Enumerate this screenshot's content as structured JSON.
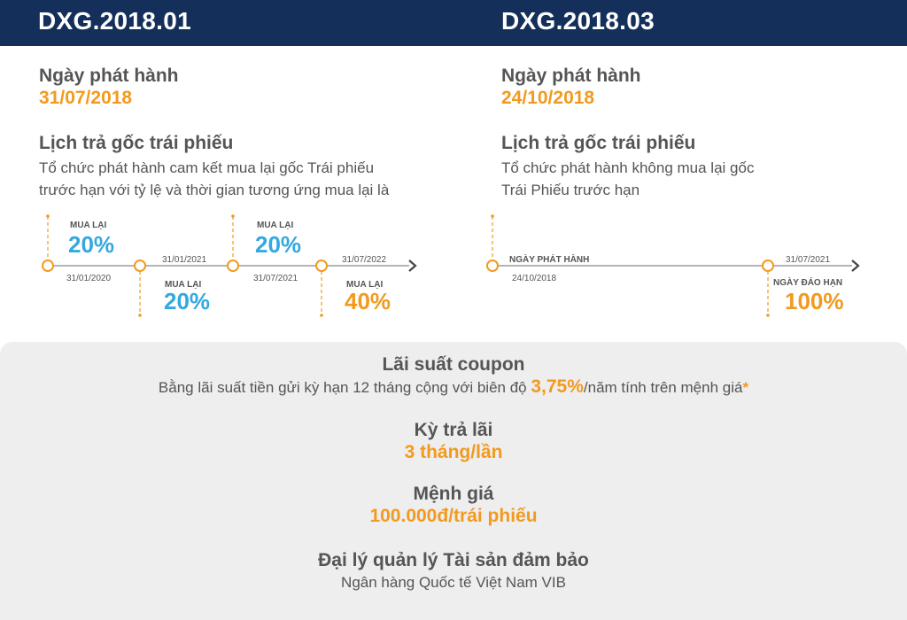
{
  "left": {
    "code": "DXG.2018.01",
    "issue_label": "Ngày phát hành",
    "issue_date": "31/07/2018",
    "schedule_title": "Lịch trả gốc trái phiếu",
    "schedule_line1": "Tổ chức phát hành cam kết mua lại gốc Trái phiếu",
    "schedule_line2": "trước hạn với tỷ lệ và thời gian tương ứng mua lại là",
    "timeline": [
      {
        "tag": "MUA LẠI",
        "percent": "20%",
        "date": "31/01/2020"
      },
      {
        "tag": "MUA LẠI",
        "percent": "20%",
        "date": "31/01/2021"
      },
      {
        "tag": "MUA LẠI",
        "percent": "20%",
        "date": "31/07/2021"
      },
      {
        "tag": "MUA LẠI",
        "percent": "40%",
        "date": "31/07/2022"
      }
    ]
  },
  "right": {
    "code": "DXG.2018.03",
    "issue_label": "Ngày phát hành",
    "issue_date": "24/10/2018",
    "schedule_title": "Lịch trả gốc trái phiếu",
    "schedule_line1": "Tổ chức phát hành không mua lại gốc",
    "schedule_line2": "Trái Phiếu trước hạn",
    "timeline": [
      {
        "tag": "NGÀY PHÁT HÀNH",
        "date": "24/10/2018"
      },
      {
        "tag": "NGÀY ĐÁO HẠN",
        "percent": "100%",
        "date": "31/07/2021"
      }
    ]
  },
  "bottom": {
    "coupon_title": "Lãi suất coupon",
    "coupon_pre": "Bằng lãi suất tiền gửi kỳ hạn 12 tháng cộng với biên độ ",
    "coupon_rate": "3,75%",
    "coupon_post": "/năm tính trên mệnh giá",
    "coupon_star": "*",
    "period_title": "Kỳ trả lãi",
    "period_value": "3 tháng/lần",
    "par_title": "Mệnh giá",
    "par_value": "100.000đ/trái phiếu",
    "agent_title": "Đại lý quản lý Tài sản đảm bảo",
    "agent_value": "Ngân hàng Quốc tế Việt Nam VIB"
  },
  "colors": {
    "header": "#14305a",
    "orange": "#f29a1f",
    "blue": "#34a8e0",
    "text": "#555555",
    "panel": "#eeeeee"
  }
}
